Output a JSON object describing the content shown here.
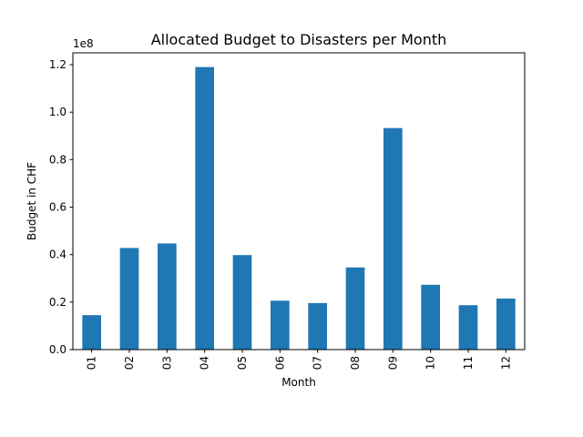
{
  "chart_data": {
    "type": "bar",
    "title": "Allocated Budget to Disasters per Month",
    "xlabel": "Month",
    "ylabel": "Budget in CHF",
    "offset_label": "1e8",
    "categories": [
      "01",
      "02",
      "03",
      "04",
      "05",
      "06",
      "07",
      "08",
      "09",
      "10",
      "11",
      "12"
    ],
    "values": [
      14500000,
      42800000,
      44700000,
      119000000,
      39800000,
      20600000,
      19600000,
      34600000,
      93300000,
      27300000,
      18700000,
      21500000
    ],
    "y_ticks": [
      0,
      20000000,
      40000000,
      60000000,
      80000000,
      100000000,
      120000000
    ],
    "y_tick_labels": [
      "0.0",
      "0.2",
      "0.4",
      "0.6",
      "0.8",
      "1.0",
      "1.2"
    ],
    "ylim": [
      0,
      125000000
    ],
    "grid": false,
    "legend": "none",
    "bar_color": "#1f77b4"
  }
}
